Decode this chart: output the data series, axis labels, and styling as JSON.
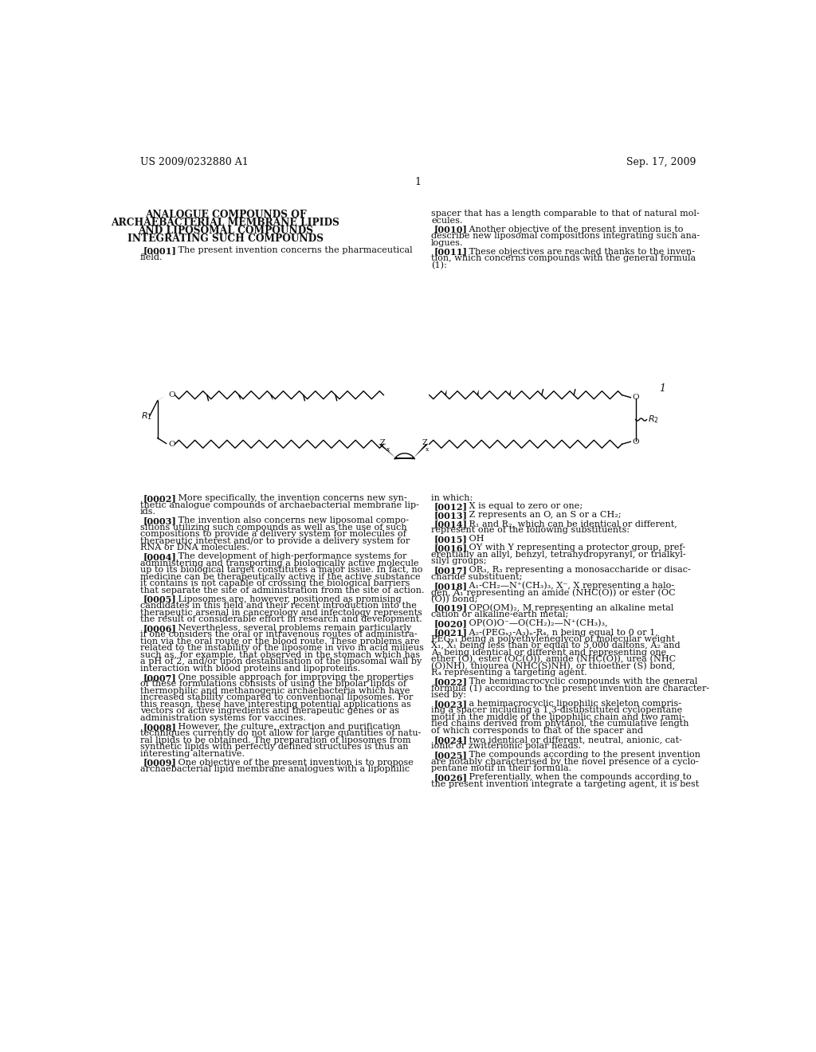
{
  "page_color": "#ffffff",
  "header_left": "US 2009/0232880 A1",
  "header_right": "Sep. 17, 2009",
  "page_number": "1",
  "title_lines": [
    "ANALOGUE COMPOUNDS OF",
    "ARCHAEBACTERIAL MEMBRANE LIPIDS",
    "AND LIPOSOMAL COMPOUNDS",
    "INTEGRATING SUCH COMPOUNDS"
  ],
  "c1_para1_tag": "[0001]",
  "c1_para1_text": "The present invention concerns the pharmaceutical\nfield.",
  "c2_line1": "spacer that has a length comparable to that of natural mol-",
  "c2_line2": "ecules.",
  "c2_para2_tag": "[0010]",
  "c2_para2_text": "Another objective of the present invention is to\ndescribe new liposomal compositions integrating such ana-\nlogues.",
  "c2_para3_tag": "[0011]",
  "c2_para3_text": "These objectives are reached thanks to the inven-\ntion, which concerns compounds with the general formula\n(1):",
  "col1_bottom": [
    [
      "[0002]",
      "More specifically, the invention concerns new syn-\nthetic analogue compounds of archaebacterial membrane lip-\nids."
    ],
    [
      "[0003]",
      "The invention also concerns new liposomal compo-\nsitions utilizing such compounds as well as the use of such\ncompositions to provide a delivery system for molecules of\ntherapeutic interest and/or to provide a delivery system for\nRNA or DNA molecules."
    ],
    [
      "[0004]",
      "The development of high-performance systems for\nadministering and transporting a biologically active molecule\nup to its biological target constitutes a major issue. In fact, no\nmedicine can be therapeutically active if the active substance\nit contains is not capable of crossing the biological barriers\nthat separate the site of administration from the site of action."
    ],
    [
      "[0005]",
      "Liposomes are, however, positioned as promising\ncandidates in this field and their recent introduction into the\ntherapeutic arsenal in cancerology and infectology represents\nthe result of considerable effort in research and development."
    ],
    [
      "[0006]",
      "Nevertheless, several problems remain particularly\nif one considers the oral or intravenous routes of administra-\ntion via the oral route or the blood route. These problems are\nrelated to the instability of the liposome in vivo in acid milieus\nsuch as, for example, that observed in the stomach which has\na pH of 2, and/or upon destabilisation of the liposomal wall by\ninteraction with blood proteins and lipoproteins."
    ],
    [
      "[0007]",
      "One possible approach for improving the properties\nof these formulations consists of using the bipolar lipids of\nthermophilic and methanogenic archaebacteria which have\nincreased stability compared to conventional liposomes. For\nthis reason, these have interesting potential applications as\nvectors of active ingredients and therapeutic genes or as\nadministration systems for vaccines."
    ],
    [
      "[0008]",
      "However, the culture, extraction and purification\ntechniques currently do not allow for large quantities of natu-\nral lipids to be obtained. The preparation of liposomes from\nsynthetic lipids with perfectly defined structures is thus an\ninteresting alternative."
    ],
    [
      "[0009]",
      "One objective of the present invention is to propose\narchaebacterial lipid membrane analogues with a lipophilic"
    ]
  ],
  "col2_bottom_intro": "in which:",
  "col2_bottom": [
    [
      "[0012]",
      "X is equal to zero or one;"
    ],
    [
      "[0013]",
      "Z represents an O, an S or a CH₂;"
    ],
    [
      "[0014]",
      "R₁ and R₂, which can be identical or different,\nrepresent one of the following substituents:"
    ],
    [
      "[0015]",
      "OH"
    ],
    [
      "[0016]",
      "OY with Y representing a protector group, pref-\nerentially an allyl, benzyl, tetrahydropyranyl, or trialkyl-\nsilyl groups;"
    ],
    [
      "[0017]",
      "OR₃, R₃ representing a monosaccharide or disac-\ncharide substituent;"
    ],
    [
      "[0018]",
      "A₁-CH₂—N⁺(CH₃)₃, X⁻, X representing a halo-\ngen, A₁ representing an amide (NHC(O)) or ester (OC\n(O)) bond;"
    ],
    [
      "[0019]",
      "OPO(OM)₂, M representing an alkaline metal\ncation or alkaline-earth metal;"
    ],
    [
      "[0020]",
      "OP(O)O⁻—O(CH₂)₂—N⁺(CH₃)₃,"
    ],
    [
      "[0021]",
      "A₂-(PEGₓ₁-A₃)ₙ-R₄, n being equal to 0 or 1,\nPEGₓ₁ being a polyethyleneglycol of molecular weight\nX₁, X₁ being less than or equal to 5,000 daltons, A₂ and\nA₃ being identical or different and representing one\nether (O), ester (OC(O)), amide (NHC(O)), urea (NHC\n(O)NH), thiourea (NHC(S)NH), or thioether (S) bond,\nR₄ representing a targeting agent."
    ],
    [
      "[0022]",
      "The hemimacrocyclic compounds with the general\nformula (1) according to the present invention are character-\nised by:"
    ],
    [
      "[0023]",
      "a hemimacrocyclic lipophilic skeleton compris-\ning a spacer including a 1,3-disubstituted cyclopentane\nmotif in the middle of the lipophilic chain and two rami-\nfied chains derived from phytanol, the cumulative length\nof which corresponds to that of the spacer and"
    ],
    [
      "[0024]",
      "two identical or different, neutral, anionic, cat-\nionic or zwitterionic polar heads."
    ],
    [
      "[0025]",
      "The compounds according to the present invention\nare notably characterised by the novel presence of a cyclo-\npentane motif in their formula."
    ],
    [
      "[0026]",
      "Preferentially, when the compounds according to\nthe present invention integrate a targeting agent, it is best"
    ]
  ],
  "struct_ytc": 445,
  "struct_ybc": 510,
  "struct_xcenter": 490,
  "struct_lw": 1.0,
  "fs_body": 8.1,
  "lh": 11.0,
  "fs_header": 9.0,
  "fs_title": 8.8
}
